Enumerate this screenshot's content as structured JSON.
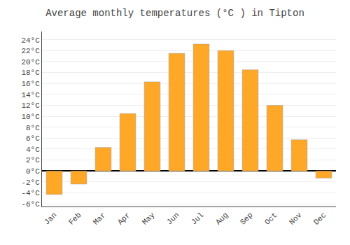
{
  "chart_data": {
    "type": "bar",
    "title": "Average monthly temperatures (°C ) in Tipton",
    "categories": [
      "Jan",
      "Feb",
      "Mar",
      "Apr",
      "May",
      "Jun",
      "Jul",
      "Aug",
      "Sep",
      "Oct",
      "Nov",
      "Dec"
    ],
    "values": [
      -4.3,
      -2.4,
      4.3,
      10.5,
      16.3,
      21.5,
      23.2,
      22.0,
      18.5,
      12.0,
      5.7,
      -1.3
    ],
    "color": "#FFA726",
    "ylim": [
      -6.5,
      25.5
    ],
    "yticks": [
      {
        "value": -6,
        "label": "-6°C"
      },
      {
        "value": -4,
        "label": "-4°C"
      },
      {
        "value": -2,
        "label": "-2°C"
      },
      {
        "value": 0,
        "label": "0°C"
      },
      {
        "value": 2,
        "label": "2°C"
      },
      {
        "value": 4,
        "label": "4°C"
      },
      {
        "value": 6,
        "label": "6°C"
      },
      {
        "value": 8,
        "label": "8°C"
      },
      {
        "value": 10,
        "label": "10°C"
      },
      {
        "value": 12,
        "label": "12°C"
      },
      {
        "value": 14,
        "label": "14°C"
      },
      {
        "value": 16,
        "label": "16°C"
      },
      {
        "value": 18,
        "label": "18°C"
      },
      {
        "value": 20,
        "label": "20°C"
      },
      {
        "value": 22,
        "label": "22°C"
      },
      {
        "value": 24,
        "label": "24°C"
      }
    ],
    "grid": true
  }
}
